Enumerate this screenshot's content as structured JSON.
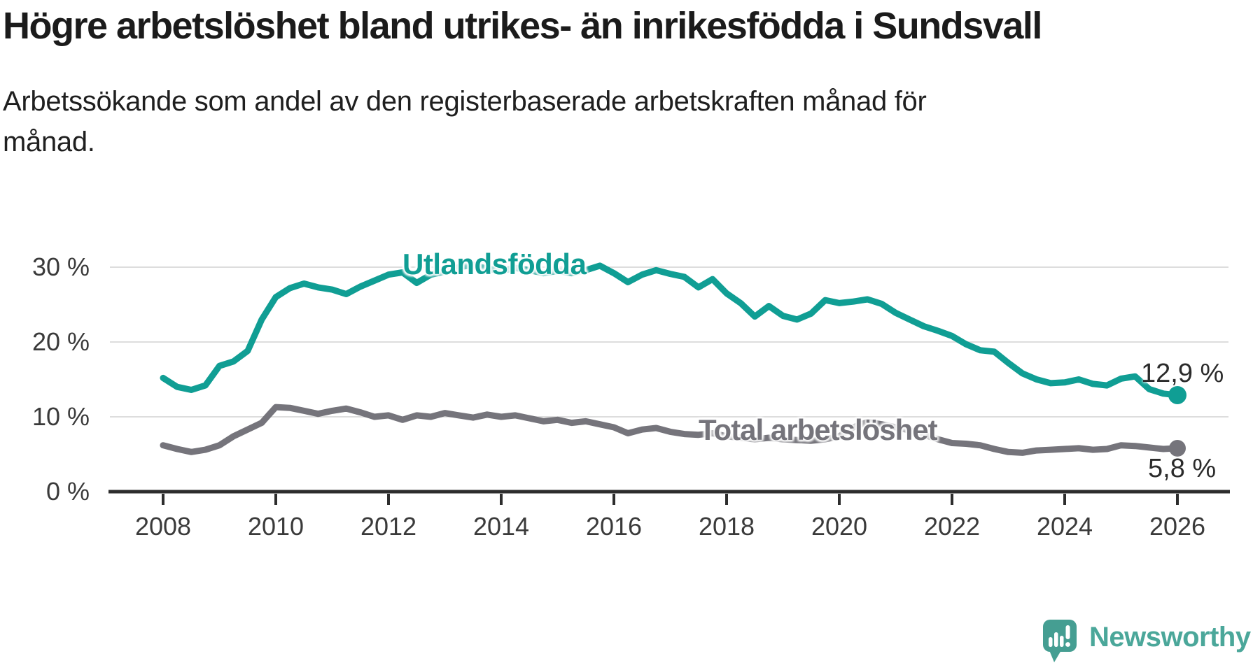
{
  "header": {
    "title": "Högre arbetslöshet bland utrikes- än inrikesfödda i Sundsvall",
    "subtitle_line1": "Arbetssökande som andel av den registerbaserade arbetskraften månad för",
    "subtitle_line2": "månad."
  },
  "branding": {
    "wordmark": "Newsworthy",
    "logo_icon": "newsworthy-speech-bubble-chart-icon",
    "brand_color": "#4ba79a"
  },
  "chart_data": {
    "type": "line",
    "title": "Högre arbetslöshet bland utrikes- än inrikesfödda i Sundsvall",
    "subtitle": "Arbetssökande som andel av den registerbaserade arbetskraften månad för månad.",
    "xlabel": "",
    "ylabel": "",
    "x_start": 2008.0,
    "x_step": 0.25,
    "xlim": [
      2007.1,
      2026.9
    ],
    "ylim": [
      0,
      33
    ],
    "grid": "horizontal",
    "legend_position": "inline-labels",
    "x_ticks": [
      "2008",
      "2010",
      "2012",
      "2014",
      "2016",
      "2018",
      "2020",
      "2022",
      "2024",
      "2026"
    ],
    "x_tick_values": [
      2008,
      2010,
      2012,
      2014,
      2016,
      2018,
      2020,
      2022,
      2024,
      2026
    ],
    "y_ticks": [
      {
        "value": 0,
        "label": "0 %"
      },
      {
        "value": 10,
        "label": "10 %"
      },
      {
        "value": 20,
        "label": "20 %"
      },
      {
        "value": 30,
        "label": "30 %"
      }
    ],
    "colors": {
      "grid": "#dddddd",
      "axis": "#2d2d2d",
      "tick_text": "#3a3a3a"
    },
    "series": [
      {
        "name": "Utlandsfödda",
        "color": "#109e94",
        "end_label": "12,9 %",
        "end_value": 12.9,
        "values": [
          15.2,
          14.0,
          13.6,
          14.2,
          16.8,
          17.4,
          18.8,
          23.0,
          26.0,
          27.2,
          27.8,
          27.3,
          27.0,
          26.4,
          27.4,
          28.2,
          29.0,
          29.3,
          27.9,
          29.0,
          29.4,
          30.0,
          30.3,
          29.8,
          29.5,
          29.9,
          29.6,
          29.2,
          29.5,
          29.2,
          29.6,
          30.2,
          29.2,
          28.0,
          29.0,
          29.6,
          29.1,
          28.7,
          27.3,
          28.4,
          26.5,
          25.2,
          23.4,
          24.8,
          23.5,
          23.0,
          23.8,
          25.6,
          25.2,
          25.4,
          25.7,
          25.1,
          23.9,
          23.0,
          22.1,
          21.5,
          20.8,
          19.7,
          18.9,
          18.7,
          17.2,
          15.8,
          15.0,
          14.5,
          14.6,
          15.0,
          14.4,
          14.2,
          15.1,
          15.4,
          13.7,
          13.1,
          12.9
        ]
      },
      {
        "name": "Total arbetslöshet",
        "color": "#75747b",
        "end_label": "5,8 %",
        "end_value": 5.8,
        "values": [
          6.2,
          5.7,
          5.3,
          5.6,
          6.2,
          7.4,
          8.3,
          9.2,
          11.3,
          11.2,
          10.8,
          10.4,
          10.8,
          11.1,
          10.6,
          10.0,
          10.2,
          9.6,
          10.2,
          10.0,
          10.5,
          10.2,
          9.9,
          10.3,
          10.0,
          10.2,
          9.8,
          9.4,
          9.6,
          9.2,
          9.4,
          9.0,
          8.6,
          7.8,
          8.3,
          8.5,
          8.0,
          7.7,
          7.6,
          7.8,
          7.4,
          7.2,
          7.0,
          7.2,
          7.0,
          6.9,
          6.8,
          7.0,
          7.4,
          8.6,
          9.3,
          9.0,
          8.6,
          8.2,
          7.6,
          7.0,
          6.5,
          6.4,
          6.2,
          5.7,
          5.3,
          5.2,
          5.5,
          5.6,
          5.7,
          5.8,
          5.6,
          5.7,
          6.2,
          6.1,
          5.9,
          5.7,
          5.8
        ]
      }
    ]
  }
}
